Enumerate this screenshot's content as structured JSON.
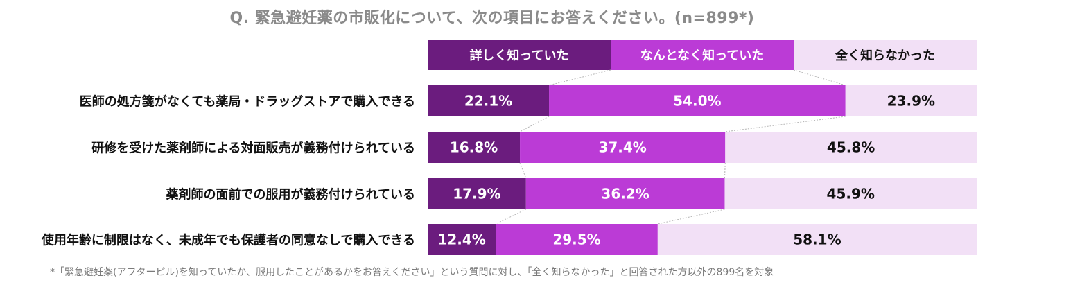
{
  "chart_data": {
    "type": "bar",
    "orientation": "horizontal",
    "stacked": true,
    "title": "Q. 緊急避妊薬の市販化について、次の項目にお答えください。(n=899*)",
    "categories": [
      "医師の処方箋がなくても薬局・ドラッグストアで購入できる",
      "研修を受けた薬剤師による対面販売が義務付けられている",
      "薬剤師の面前での服用が義務付けられている",
      "使用年齢に制限はなく、未成年でも保護者の同意なしで購入できる"
    ],
    "series": [
      {
        "name": "詳しく知っていた",
        "values": [
          22.1,
          16.8,
          17.9,
          12.4
        ],
        "labels": [
          "22.1%",
          "16.8%",
          "17.9%",
          "12.4%"
        ],
        "color": "#6b1c7e",
        "text_color": "#ffffff"
      },
      {
        "name": "なんとなく知っていた",
        "values": [
          54.0,
          37.4,
          36.2,
          29.5
        ],
        "labels": [
          "54.0%",
          "37.4%",
          "36.2%",
          "29.5%"
        ],
        "color": "#bb3bd6",
        "text_color": "#ffffff"
      },
      {
        "name": "全く知らなかった",
        "values": [
          23.9,
          45.8,
          45.9,
          58.1
        ],
        "labels": [
          "23.9%",
          "45.8%",
          "45.9%",
          "58.1%"
        ],
        "color": "#f2e0f6",
        "text_color": "#111111"
      }
    ],
    "xlim": [
      0,
      100
    ],
    "legend_position": "top",
    "connector_lines": true,
    "footnote": "*「緊急避妊薬(アフターピル)を知っていたか、服用したことがあるかをお答えください」という質問に対し、「全く知らなかった」と回答された方以外の899名を対象"
  }
}
